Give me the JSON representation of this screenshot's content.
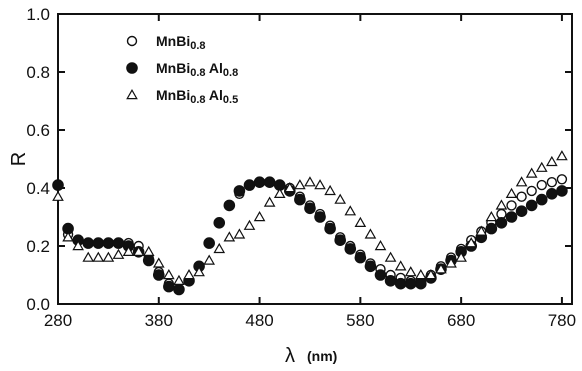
{
  "chart_data": {
    "type": "scatter",
    "title": "",
    "xlabel": "λ",
    "xlabel_unit": "(nm)",
    "ylabel": "R",
    "xlim": [
      280,
      790
    ],
    "ylim": [
      0.0,
      1.0
    ],
    "xticks": [
      "280",
      "380",
      "480",
      "580",
      "680",
      "780"
    ],
    "yticks": [
      "0.0",
      "0.2",
      "0.4",
      "0.6",
      "0.8",
      "1.0"
    ],
    "grid": false,
    "legend_position": "top-left",
    "series": [
      {
        "name": "MnBi0.8",
        "name_base": "MnBi",
        "name_sub": "0.8",
        "marker": "circle-open",
        "x": [
          290,
          300,
          310,
          320,
          330,
          340,
          350,
          360,
          370,
          380,
          390,
          400,
          410,
          420,
          430,
          440,
          450,
          460,
          470,
          480,
          490,
          500,
          510,
          520,
          530,
          540,
          550,
          560,
          570,
          580,
          590,
          600,
          610,
          620,
          630,
          640,
          650,
          660,
          670,
          680,
          690,
          700,
          710,
          720,
          730,
          740,
          750,
          760,
          770,
          780
        ],
        "y": [
          0.24,
          0.22,
          0.21,
          0.21,
          0.21,
          0.21,
          0.21,
          0.2,
          0.16,
          0.11,
          0.07,
          0.05,
          0.08,
          0.13,
          0.21,
          0.28,
          0.34,
          0.38,
          0.41,
          0.42,
          0.42,
          0.41,
          0.4,
          0.37,
          0.34,
          0.31,
          0.27,
          0.23,
          0.2,
          0.17,
          0.14,
          0.12,
          0.1,
          0.09,
          0.08,
          0.08,
          0.1,
          0.13,
          0.16,
          0.19,
          0.22,
          0.25,
          0.28,
          0.31,
          0.34,
          0.37,
          0.39,
          0.41,
          0.42,
          0.43
        ]
      },
      {
        "name": "MnBi0.8 Al0.8",
        "name_base": "MnBi",
        "name_sub": "0.8",
        "name_mid": " Al",
        "name_sub2": "0.8",
        "marker": "circle-filled",
        "x": [
          280,
          290,
          300,
          310,
          320,
          330,
          340,
          350,
          360,
          370,
          380,
          390,
          400,
          410,
          420,
          430,
          440,
          450,
          460,
          470,
          480,
          490,
          500,
          510,
          520,
          530,
          540,
          550,
          560,
          570,
          580,
          590,
          600,
          610,
          620,
          630,
          640,
          650,
          660,
          670,
          680,
          690,
          700,
          710,
          720,
          730,
          740,
          750,
          760,
          770,
          780
        ],
        "y": [
          0.41,
          0.26,
          0.22,
          0.21,
          0.21,
          0.21,
          0.21,
          0.2,
          0.18,
          0.15,
          0.1,
          0.06,
          0.05,
          0.08,
          0.13,
          0.21,
          0.28,
          0.34,
          0.39,
          0.41,
          0.42,
          0.42,
          0.41,
          0.39,
          0.36,
          0.33,
          0.3,
          0.26,
          0.22,
          0.19,
          0.16,
          0.13,
          0.1,
          0.08,
          0.07,
          0.07,
          0.07,
          0.09,
          0.12,
          0.15,
          0.18,
          0.2,
          0.23,
          0.26,
          0.28,
          0.3,
          0.32,
          0.34,
          0.36,
          0.38,
          0.39
        ]
      },
      {
        "name": "MnBi0.8 Al0.5",
        "name_base": "MnBi",
        "name_sub": "0.8",
        "name_mid": " Al",
        "name_sub2": "0.5",
        "marker": "triangle-open",
        "x": [
          280,
          290,
          300,
          310,
          320,
          330,
          340,
          350,
          360,
          370,
          380,
          390,
          400,
          410,
          420,
          430,
          440,
          450,
          460,
          470,
          480,
          490,
          500,
          510,
          520,
          530,
          540,
          550,
          560,
          570,
          580,
          590,
          600,
          610,
          620,
          630,
          640,
          650,
          660,
          670,
          680,
          690,
          700,
          710,
          720,
          730,
          740,
          750,
          760,
          770,
          780
        ],
        "y": [
          0.37,
          0.23,
          0.2,
          0.16,
          0.16,
          0.16,
          0.17,
          0.18,
          0.18,
          0.18,
          0.14,
          0.1,
          0.08,
          0.1,
          0.11,
          0.15,
          0.19,
          0.23,
          0.24,
          0.27,
          0.3,
          0.35,
          0.38,
          0.4,
          0.41,
          0.42,
          0.41,
          0.39,
          0.36,
          0.32,
          0.28,
          0.24,
          0.2,
          0.16,
          0.13,
          0.11,
          0.1,
          0.1,
          0.12,
          0.14,
          0.16,
          0.21,
          0.25,
          0.3,
          0.34,
          0.38,
          0.42,
          0.45,
          0.47,
          0.49,
          0.51
        ]
      }
    ]
  }
}
